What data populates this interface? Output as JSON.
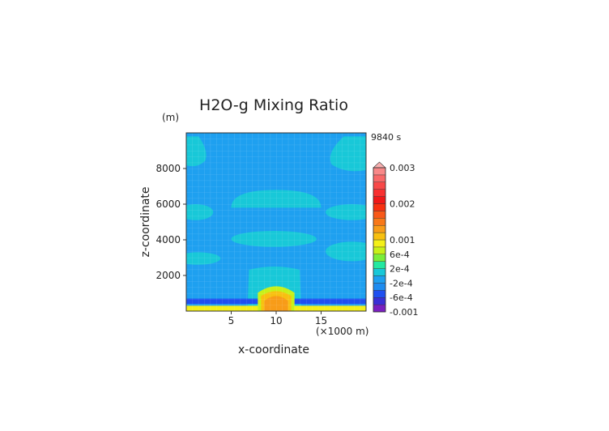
{
  "chart_data": {
    "type": "contour",
    "title": "H2O-g Mixing Ratio",
    "time_label": "9840 s",
    "xlabel": "x-coordinate",
    "x_unit": "(×1000 m)",
    "ylabel": "z-coordinate",
    "y_unit": "(m)",
    "xlim": [
      0,
      20
    ],
    "ylim": [
      0,
      10000
    ],
    "x_ticks": [
      5,
      10,
      15
    ],
    "y_ticks": [
      2000,
      4000,
      6000,
      8000
    ],
    "grid": true,
    "colorbar": {
      "labels": [
        "0.003",
        "0.002",
        "0.001",
        "6e-4",
        "2e-4",
        "-2e-4",
        "-6e-4",
        "-0.001"
      ],
      "label_values": [
        0.003,
        0.002,
        0.001,
        0.0006,
        0.0002,
        -0.0002,
        -0.0006,
        -0.001
      ],
      "levels": [
        -0.001,
        -0.0008,
        -0.0006,
        -0.0004,
        -0.0002,
        0.0,
        0.0002,
        0.0004,
        0.0006,
        0.0008,
        0.001,
        0.0012,
        0.0014,
        0.0016,
        0.0018,
        0.002,
        0.0022,
        0.0024,
        0.0026,
        0.0028,
        0.003
      ],
      "colors": [
        "#7a1fc0",
        "#3a2fd6",
        "#1f4ff0",
        "#1e8cf0",
        "#1ea0f0",
        "#18c8d8",
        "#22e8a0",
        "#7aee3a",
        "#c8f018",
        "#f4f018",
        "#f8c010",
        "#f89c18",
        "#f87818",
        "#f85818",
        "#f83010",
        "#f01818",
        "#f83030",
        "#f84848",
        "#f86868",
        "#f88888",
        "#f8b0b0"
      ],
      "extend": "max"
    },
    "background_value": -0.0001,
    "regions": [
      {
        "feature": "upper-left lobe",
        "value": 0.0001,
        "x": [
          0,
          2.5
        ],
        "z": [
          8000,
          9800
        ]
      },
      {
        "feature": "upper-right lobe",
        "value": 0.0001,
        "x": [
          15.5,
          20
        ],
        "z": [
          7700,
          9800
        ]
      },
      {
        "feature": "dome",
        "value": 0.0001,
        "x": [
          5,
          15
        ],
        "z": [
          5800,
          6800
        ]
      },
      {
        "feature": "left band 5500",
        "value": 0.0001,
        "x": [
          0,
          3
        ],
        "z": [
          5100,
          6000
        ]
      },
      {
        "feature": "right band 5500",
        "value": 0.0001,
        "x": [
          15.5,
          20
        ],
        "z": [
          5100,
          6000
        ]
      },
      {
        "feature": "lens 4000",
        "value": 0.0001,
        "x": [
          5,
          14.5
        ],
        "z": [
          3600,
          4500
        ]
      },
      {
        "feature": "left band 3000",
        "value": 0.0001,
        "x": [
          0,
          3.8
        ],
        "z": [
          2600,
          3300
        ]
      },
      {
        "feature": "right band 3500",
        "value": 0.0001,
        "x": [
          15.5,
          20
        ],
        "z": [
          2800,
          3900
        ]
      },
      {
        "feature": "column",
        "value": 0.0001,
        "x": [
          6.8,
          12.8
        ],
        "z": [
          0,
          2500
        ]
      },
      {
        "feature": "low level negative layer",
        "value": -0.0006,
        "x": [
          0,
          20
        ],
        "z": [
          400,
          700
        ]
      },
      {
        "feature": "surface layer",
        "value": 0.0008,
        "x": [
          0,
          20
        ],
        "z": [
          0,
          300
        ]
      },
      {
        "feature": "core",
        "value": 0.0012,
        "x": [
          8.5,
          11.5
        ],
        "z": [
          0,
          1300
        ]
      }
    ]
  }
}
